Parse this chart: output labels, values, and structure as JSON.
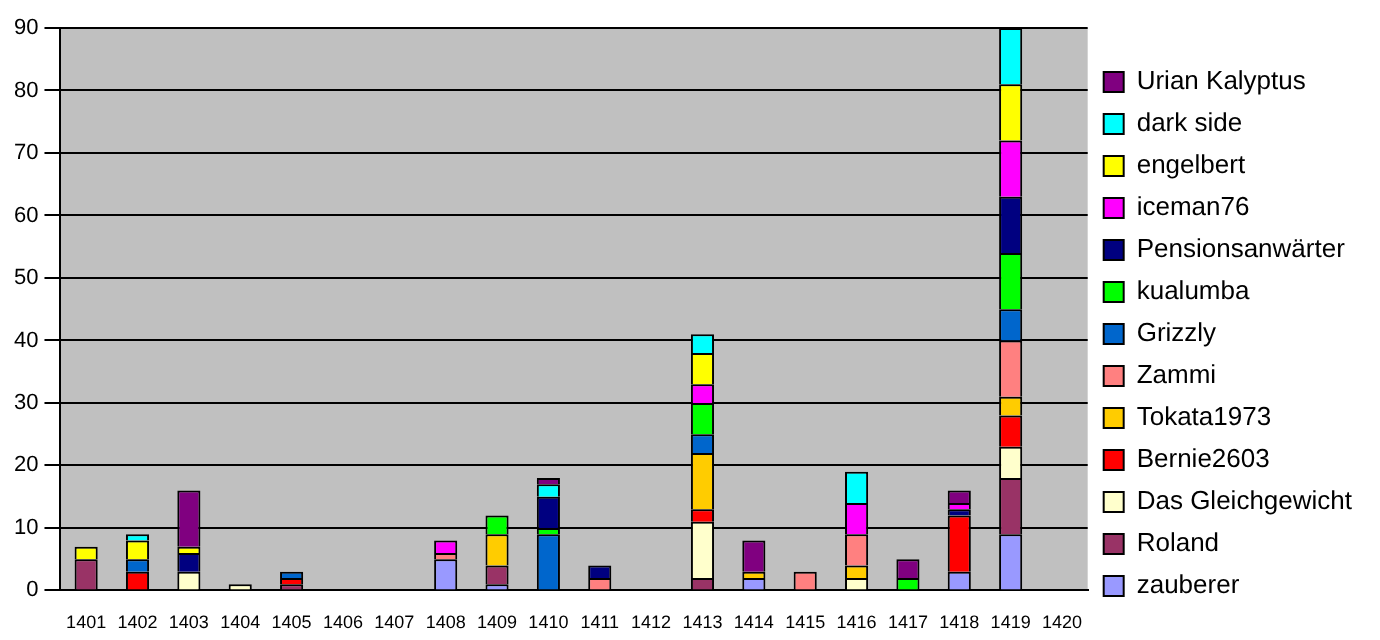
{
  "chart_data": {
    "type": "bar",
    "stacked": true,
    "grid": "y",
    "legend": "right",
    "categories": [
      "1401",
      "1402",
      "1403",
      "1404",
      "1405",
      "1406",
      "1407",
      "1408",
      "1409",
      "1410",
      "1411",
      "1412",
      "1413",
      "1414",
      "1415",
      "1416",
      "1417",
      "1418",
      "1419",
      "1420"
    ],
    "ylim": [
      0,
      90
    ],
    "yticks": [
      0,
      10,
      20,
      30,
      40,
      50,
      60,
      70,
      80,
      90
    ],
    "series": [
      {
        "name": "zauberer",
        "color": "#9999ff",
        "values": [
          null,
          null,
          null,
          null,
          null,
          null,
          null,
          5,
          1,
          null,
          null,
          null,
          null,
          2,
          null,
          null,
          null,
          3,
          9,
          null
        ]
      },
      {
        "name": "Roland",
        "color": "#993366",
        "values": [
          5,
          null,
          null,
          null,
          1,
          null,
          null,
          null,
          3,
          null,
          null,
          null,
          2,
          null,
          null,
          null,
          null,
          null,
          9,
          null
        ]
      },
      {
        "name": "Das Gleichgewicht",
        "color": "#ffffcc",
        "values": [
          null,
          null,
          3,
          1,
          null,
          null,
          null,
          null,
          null,
          null,
          null,
          null,
          9,
          null,
          null,
          2,
          null,
          null,
          5,
          null
        ]
      },
      {
        "name": "Bernie2603",
        "color": "#ff0000",
        "values": [
          null,
          3,
          null,
          null,
          1,
          null,
          null,
          null,
          null,
          null,
          null,
          null,
          2,
          null,
          null,
          null,
          null,
          9,
          5,
          null
        ]
      },
      {
        "name": "Tokata1973",
        "color": "#ffcc00",
        "values": [
          null,
          null,
          null,
          null,
          null,
          null,
          null,
          null,
          5,
          null,
          null,
          null,
          9,
          1,
          null,
          2,
          null,
          null,
          3,
          null
        ]
      },
      {
        "name": "Zammi",
        "color": "#ff8080",
        "values": [
          null,
          null,
          null,
          null,
          null,
          null,
          null,
          1,
          null,
          null,
          2,
          null,
          null,
          null,
          3,
          5,
          null,
          null,
          9,
          null
        ]
      },
      {
        "name": "Grizzly",
        "color": "#0066cc",
        "values": [
          null,
          2,
          null,
          null,
          1,
          null,
          null,
          null,
          null,
          9,
          null,
          null,
          3,
          null,
          null,
          null,
          null,
          null,
          5,
          null
        ]
      },
      {
        "name": "kualumba",
        "color": "#00ff00",
        "values": [
          null,
          null,
          null,
          null,
          null,
          null,
          null,
          null,
          3,
          1,
          null,
          null,
          5,
          null,
          null,
          null,
          2,
          null,
          9,
          null
        ]
      },
      {
        "name": "Pensionsanwärter",
        "color": "#000080",
        "values": [
          null,
          null,
          3,
          null,
          null,
          null,
          null,
          null,
          null,
          5,
          2,
          null,
          null,
          null,
          null,
          null,
          null,
          1,
          9,
          null
        ]
      },
      {
        "name": "iceman76",
        "color": "#ff00ff",
        "values": [
          null,
          null,
          null,
          null,
          null,
          null,
          null,
          2,
          null,
          null,
          null,
          null,
          3,
          null,
          null,
          5,
          null,
          1,
          9,
          null
        ]
      },
      {
        "name": "engelbert",
        "color": "#ffff00",
        "values": [
          2,
          3,
          1,
          null,
          null,
          null,
          null,
          null,
          null,
          null,
          null,
          null,
          5,
          null,
          null,
          null,
          null,
          null,
          9,
          null
        ]
      },
      {
        "name": "dark side",
        "color": "#00ffff",
        "values": [
          null,
          1,
          null,
          null,
          null,
          null,
          null,
          null,
          null,
          2,
          null,
          null,
          3,
          null,
          null,
          5,
          null,
          null,
          9,
          null
        ]
      },
      {
        "name": "Urian Kalyptus",
        "color": "#800080",
        "values": [
          null,
          null,
          9,
          null,
          null,
          null,
          null,
          null,
          null,
          1,
          null,
          null,
          null,
          5,
          null,
          null,
          3,
          2,
          null,
          null
        ]
      }
    ]
  }
}
